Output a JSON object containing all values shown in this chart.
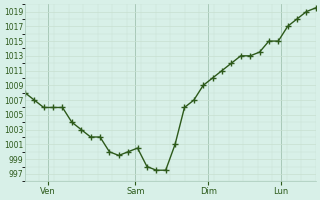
{
  "y_values": [
    1008,
    1007,
    1006,
    1006,
    1006,
    1004,
    1003,
    1002,
    1002,
    1000,
    999.5,
    1000,
    1000.5,
    998,
    997.5,
    997.5,
    1001,
    1006,
    1007,
    1009,
    1010,
    1011,
    1012,
    1013,
    1013,
    1013.5,
    1015,
    1015,
    1017,
    1018,
    1019,
    1019.5
  ],
  "ylim": [
    996,
    1020
  ],
  "yticks": [
    997,
    999,
    1001,
    1003,
    1005,
    1007,
    1009,
    1011,
    1013,
    1015,
    1017,
    1019
  ],
  "day_labels": [
    "Ven",
    "Sam",
    "Dim",
    "Lun"
  ],
  "day_positions": [
    0.08,
    0.38,
    0.63,
    0.88
  ],
  "line_color": "#2d5a1b",
  "marker_color": "#2d5a1b",
  "bg_color": "#d8f0e8",
  "grid_color_major": "#a8c8b8",
  "grid_color_minor": "#c8e0d0",
  "title_color": "#2d5a1b",
  "axis_label_color": "#2d5a1b",
  "tick_label_color": "#2d5a1b"
}
